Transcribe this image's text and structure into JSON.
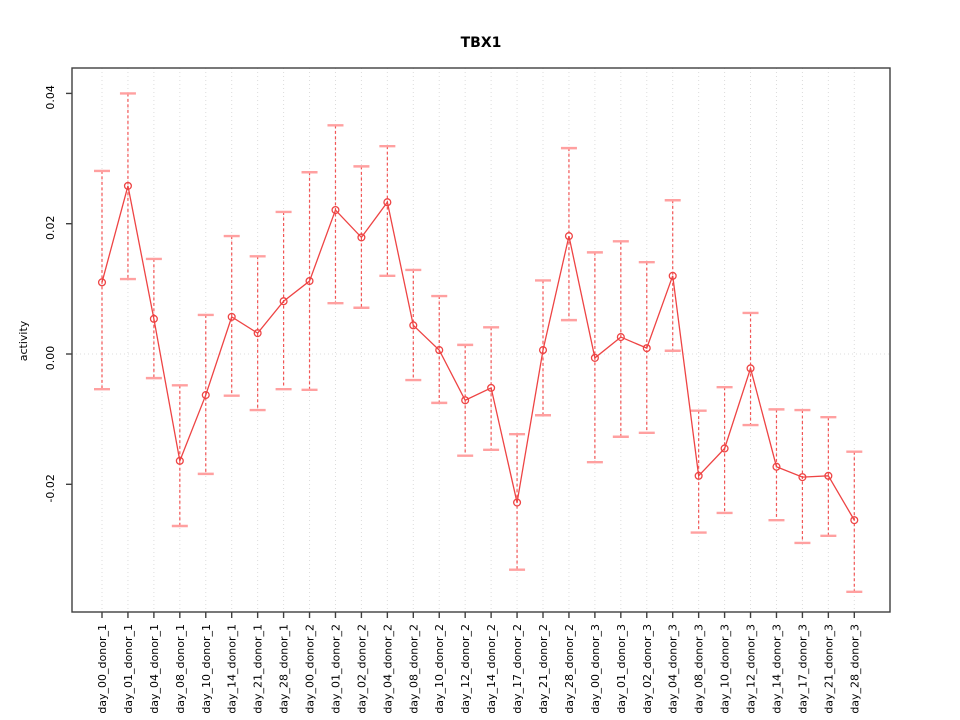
{
  "chart_data": {
    "type": "line",
    "title": "TBX1",
    "xlabel": "",
    "ylabel": "activity",
    "legend": "none",
    "marker": "open-circle",
    "grid": "dotted vertical gridline at every category; dotted horizontal line at y=0",
    "ylim": [
      -0.0396,
      0.0439
    ],
    "y_ticks": [
      -0.02,
      0.0,
      0.02,
      0.04
    ],
    "y_tick_labels": [
      "-0.02",
      "0.00",
      "0.02",
      "0.04"
    ],
    "categories": [
      "day_00_donor_1",
      "day_01_donor_1",
      "day_04_donor_1",
      "day_08_donor_1",
      "day_10_donor_1",
      "day_14_donor_1",
      "day_21_donor_1",
      "day_28_donor_1",
      "day_00_donor_2",
      "day_01_donor_2",
      "day_02_donor_2",
      "day_04_donor_2",
      "day_08_donor_2",
      "day_10_donor_2",
      "day_12_donor_2",
      "day_14_donor_2",
      "day_17_donor_2",
      "day_21_donor_2",
      "day_28_donor_2",
      "day_00_donor_3",
      "day_01_donor_3",
      "day_02_donor_3",
      "day_04_donor_3",
      "day_08_donor_3",
      "day_10_donor_3",
      "day_12_donor_3",
      "day_14_donor_3",
      "day_17_donor_3",
      "day_21_donor_3",
      "day_28_donor_3"
    ],
    "values": [
      0.011,
      0.0258,
      0.0054,
      -0.0164,
      -0.0063,
      0.0057,
      0.0032,
      0.0081,
      0.0112,
      0.0221,
      0.0179,
      0.0233,
      0.0044,
      0.0006,
      -0.0071,
      -0.0052,
      -0.0228,
      0.0006,
      0.0181,
      -0.0006,
      0.0026,
      0.0009,
      0.012,
      -0.0187,
      -0.0145,
      -0.0022,
      -0.0173,
      -0.0189,
      -0.0187,
      -0.0255
    ],
    "error_low": [
      -0.0054,
      0.0115,
      -0.0037,
      -0.0264,
      -0.0184,
      -0.0064,
      -0.0086,
      -0.0054,
      -0.0055,
      0.0078,
      0.0071,
      0.012,
      -0.004,
      -0.0075,
      -0.0156,
      -0.0147,
      -0.0331,
      -0.0094,
      0.0052,
      -0.0166,
      -0.0127,
      -0.0121,
      0.0005,
      -0.0274,
      -0.0244,
      -0.0109,
      -0.0255,
      -0.029,
      -0.0279,
      -0.0365
    ],
    "error_high": [
      0.0281,
      0.04,
      0.0146,
      -0.0048,
      0.006,
      0.0181,
      0.015,
      0.0218,
      0.0279,
      0.0351,
      0.0288,
      0.0319,
      0.0129,
      0.0089,
      0.0014,
      0.0041,
      -0.0123,
      0.0113,
      0.0316,
      0.0156,
      0.0173,
      0.0141,
      0.0236,
      -0.0087,
      -0.0051,
      0.0063,
      -0.0085,
      -0.0086,
      -0.0097,
      -0.015
    ],
    "colors": {
      "series": "#ee4444",
      "whisker": "#f25555",
      "cap": "#ffa0a0",
      "grid": "#dcdcdc",
      "axis": "#3f3f3f",
      "text": "#000000"
    }
  }
}
